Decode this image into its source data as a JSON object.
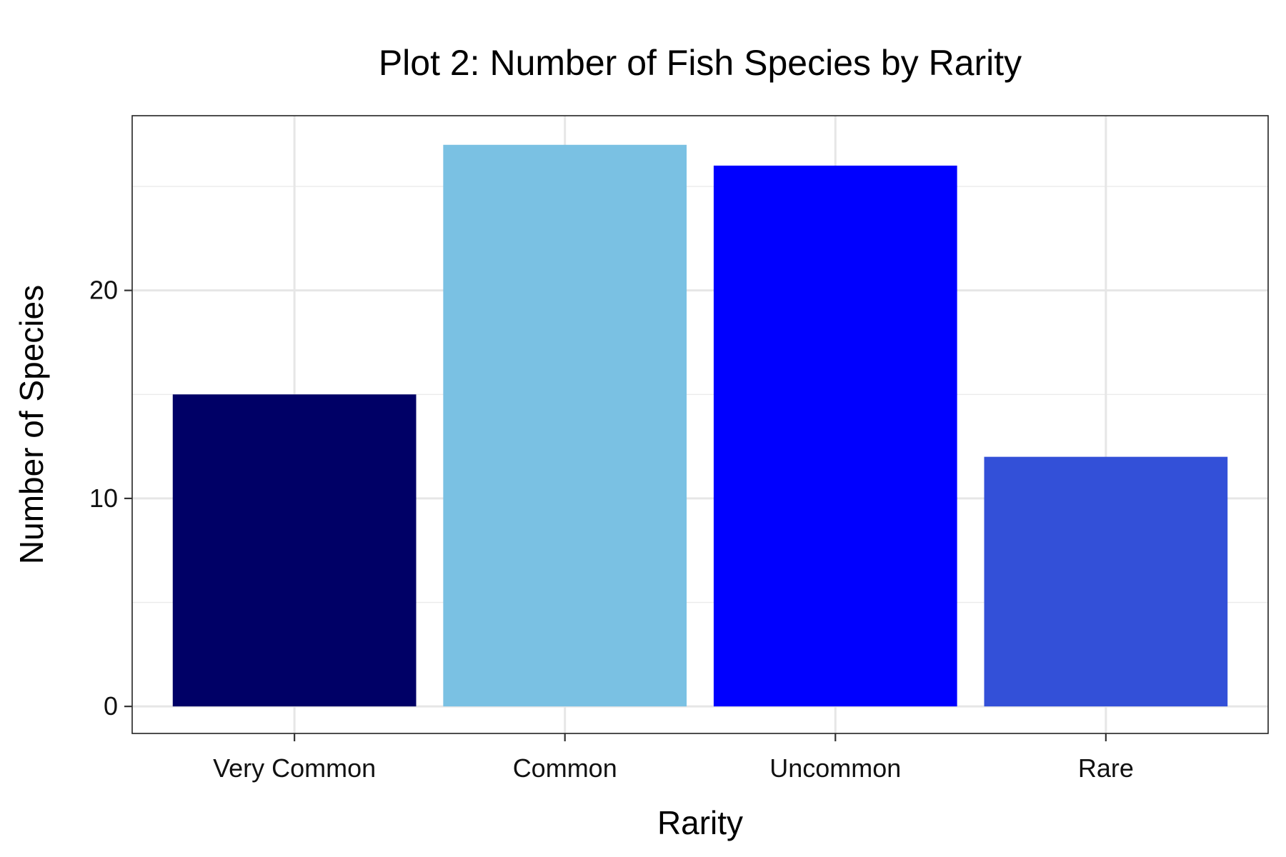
{
  "chart_data": {
    "type": "bar",
    "title": "Plot 2: Number of Fish Species by Rarity",
    "xlabel": "Rarity",
    "ylabel": "Number of Species",
    "categories": [
      "Very Common",
      "Common",
      "Uncommon",
      "Rare"
    ],
    "values": [
      15,
      27,
      26,
      12
    ],
    "colors": [
      "#000066",
      "#7AC1E3",
      "#0000FF",
      "#3350D8"
    ],
    "ylim": [
      -1.3,
      28.4
    ],
    "yticks": [
      0,
      10,
      20
    ],
    "grid": true,
    "legend": "none"
  }
}
